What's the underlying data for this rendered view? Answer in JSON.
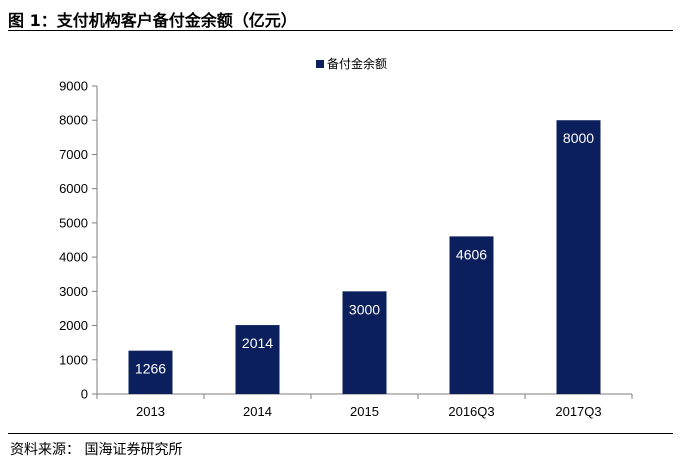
{
  "header": {
    "title": "图 1：支付机构客户备付金余额（亿元）"
  },
  "footer": {
    "source": "资料来源：   国海证券研究所"
  },
  "colors": {
    "bar": "#0b1f5c",
    "axis": "#7f7f7f",
    "label": "#ffffff"
  },
  "chart_data": {
    "type": "bar",
    "categories": [
      "2013",
      "2014",
      "2015",
      "2016Q3",
      "2017Q3"
    ],
    "series": [
      {
        "name": "备付金余额",
        "values": [
          1266,
          2014,
          3000,
          4606,
          8000
        ]
      }
    ],
    "data_labels": [
      "1266",
      "2014",
      "3000",
      "4606",
      "8000"
    ],
    "yticks": [
      0,
      1000,
      2000,
      3000,
      4000,
      5000,
      6000,
      7000,
      8000,
      9000
    ],
    "ylim": [
      0,
      9000
    ],
    "grid": false,
    "legend": "top-center"
  }
}
